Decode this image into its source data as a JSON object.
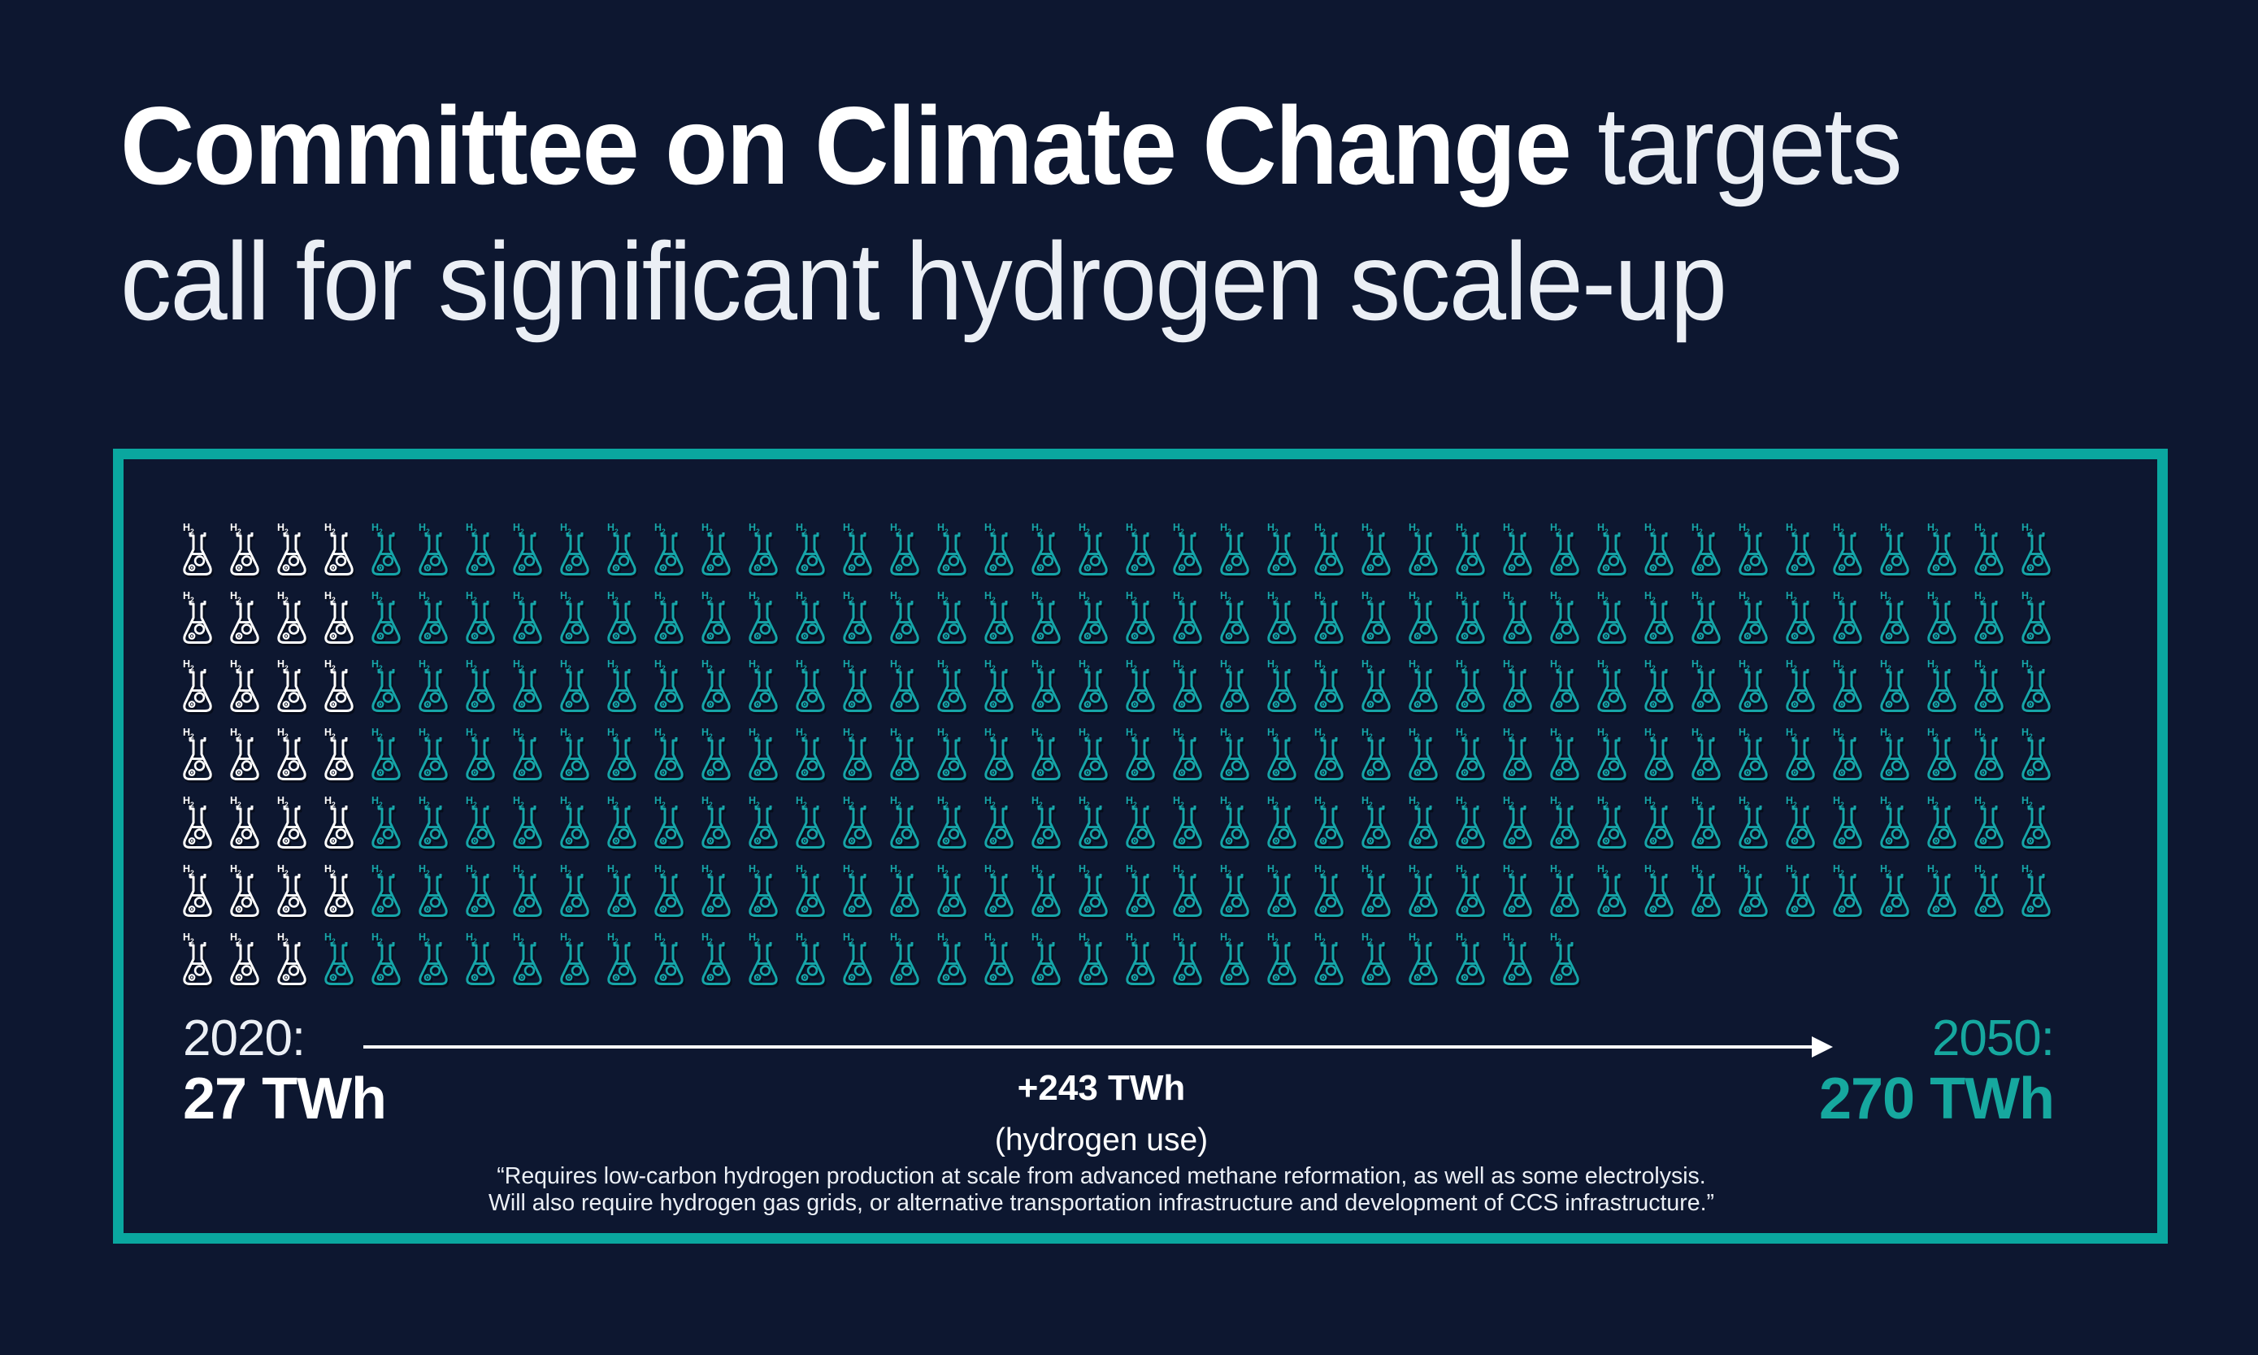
{
  "title": {
    "emphasis": "Committee on Climate Change",
    "rest": " targets",
    "line2": "call for significant hydrogen scale-up"
  },
  "chart_data": {
    "type": "pictogram",
    "title": "Committee on Climate Change targets call for significant hydrogen scale-up",
    "unit": "TWh",
    "icon": "erlenmeyer-flask-h2",
    "icon_value_twh": 1,
    "categories": [
      "2020",
      "2050"
    ],
    "values": [
      27,
      270
    ],
    "series": [
      {
        "name": "2020 hydrogen use",
        "value_twh": 27,
        "icons": 27,
        "color": "#FFFFFF"
      },
      {
        "name": "Additional hydrogen use by 2050",
        "value_twh": 243,
        "icons": 243,
        "color": "#16A6A9"
      }
    ],
    "total_icons": 270,
    "grid_rows": [
      {
        "start": 4,
        "added": 36
      },
      {
        "start": 4,
        "added": 36
      },
      {
        "start": 4,
        "added": 36
      },
      {
        "start": 4,
        "added": 36
      },
      {
        "start": 4,
        "added": 36
      },
      {
        "start": 4,
        "added": 36
      },
      {
        "start": 3,
        "added": 27
      }
    ],
    "legend_position": "none"
  },
  "flask_label": {
    "element": "H",
    "subscript": "2"
  },
  "timeline": {
    "start": {
      "year_label": "2020:",
      "value_label": "27 TWh"
    },
    "end": {
      "year_label": "2050:",
      "value_label": "270 TWh"
    },
    "delta_label": "+243 TWh",
    "delta_sub": "(hydrogen use)"
  },
  "quote": {
    "lines": [
      "“Requires low-carbon hydrogen production at scale from advanced methane reformation, as well as some electrolysis.",
      "Will also require hydrogen gas grids, or alternative transportation infrastructure and development of CCS infrastructure.”"
    ]
  },
  "colors": {
    "background": "#0D1730",
    "box_border": "#0AA79F",
    "flask_start": "#FFFFFF",
    "flask_added": "#16A6A9",
    "accent_text": "#16A89F",
    "text_primary": "#FFFFFF",
    "text_soft": "#EBEFF5"
  }
}
